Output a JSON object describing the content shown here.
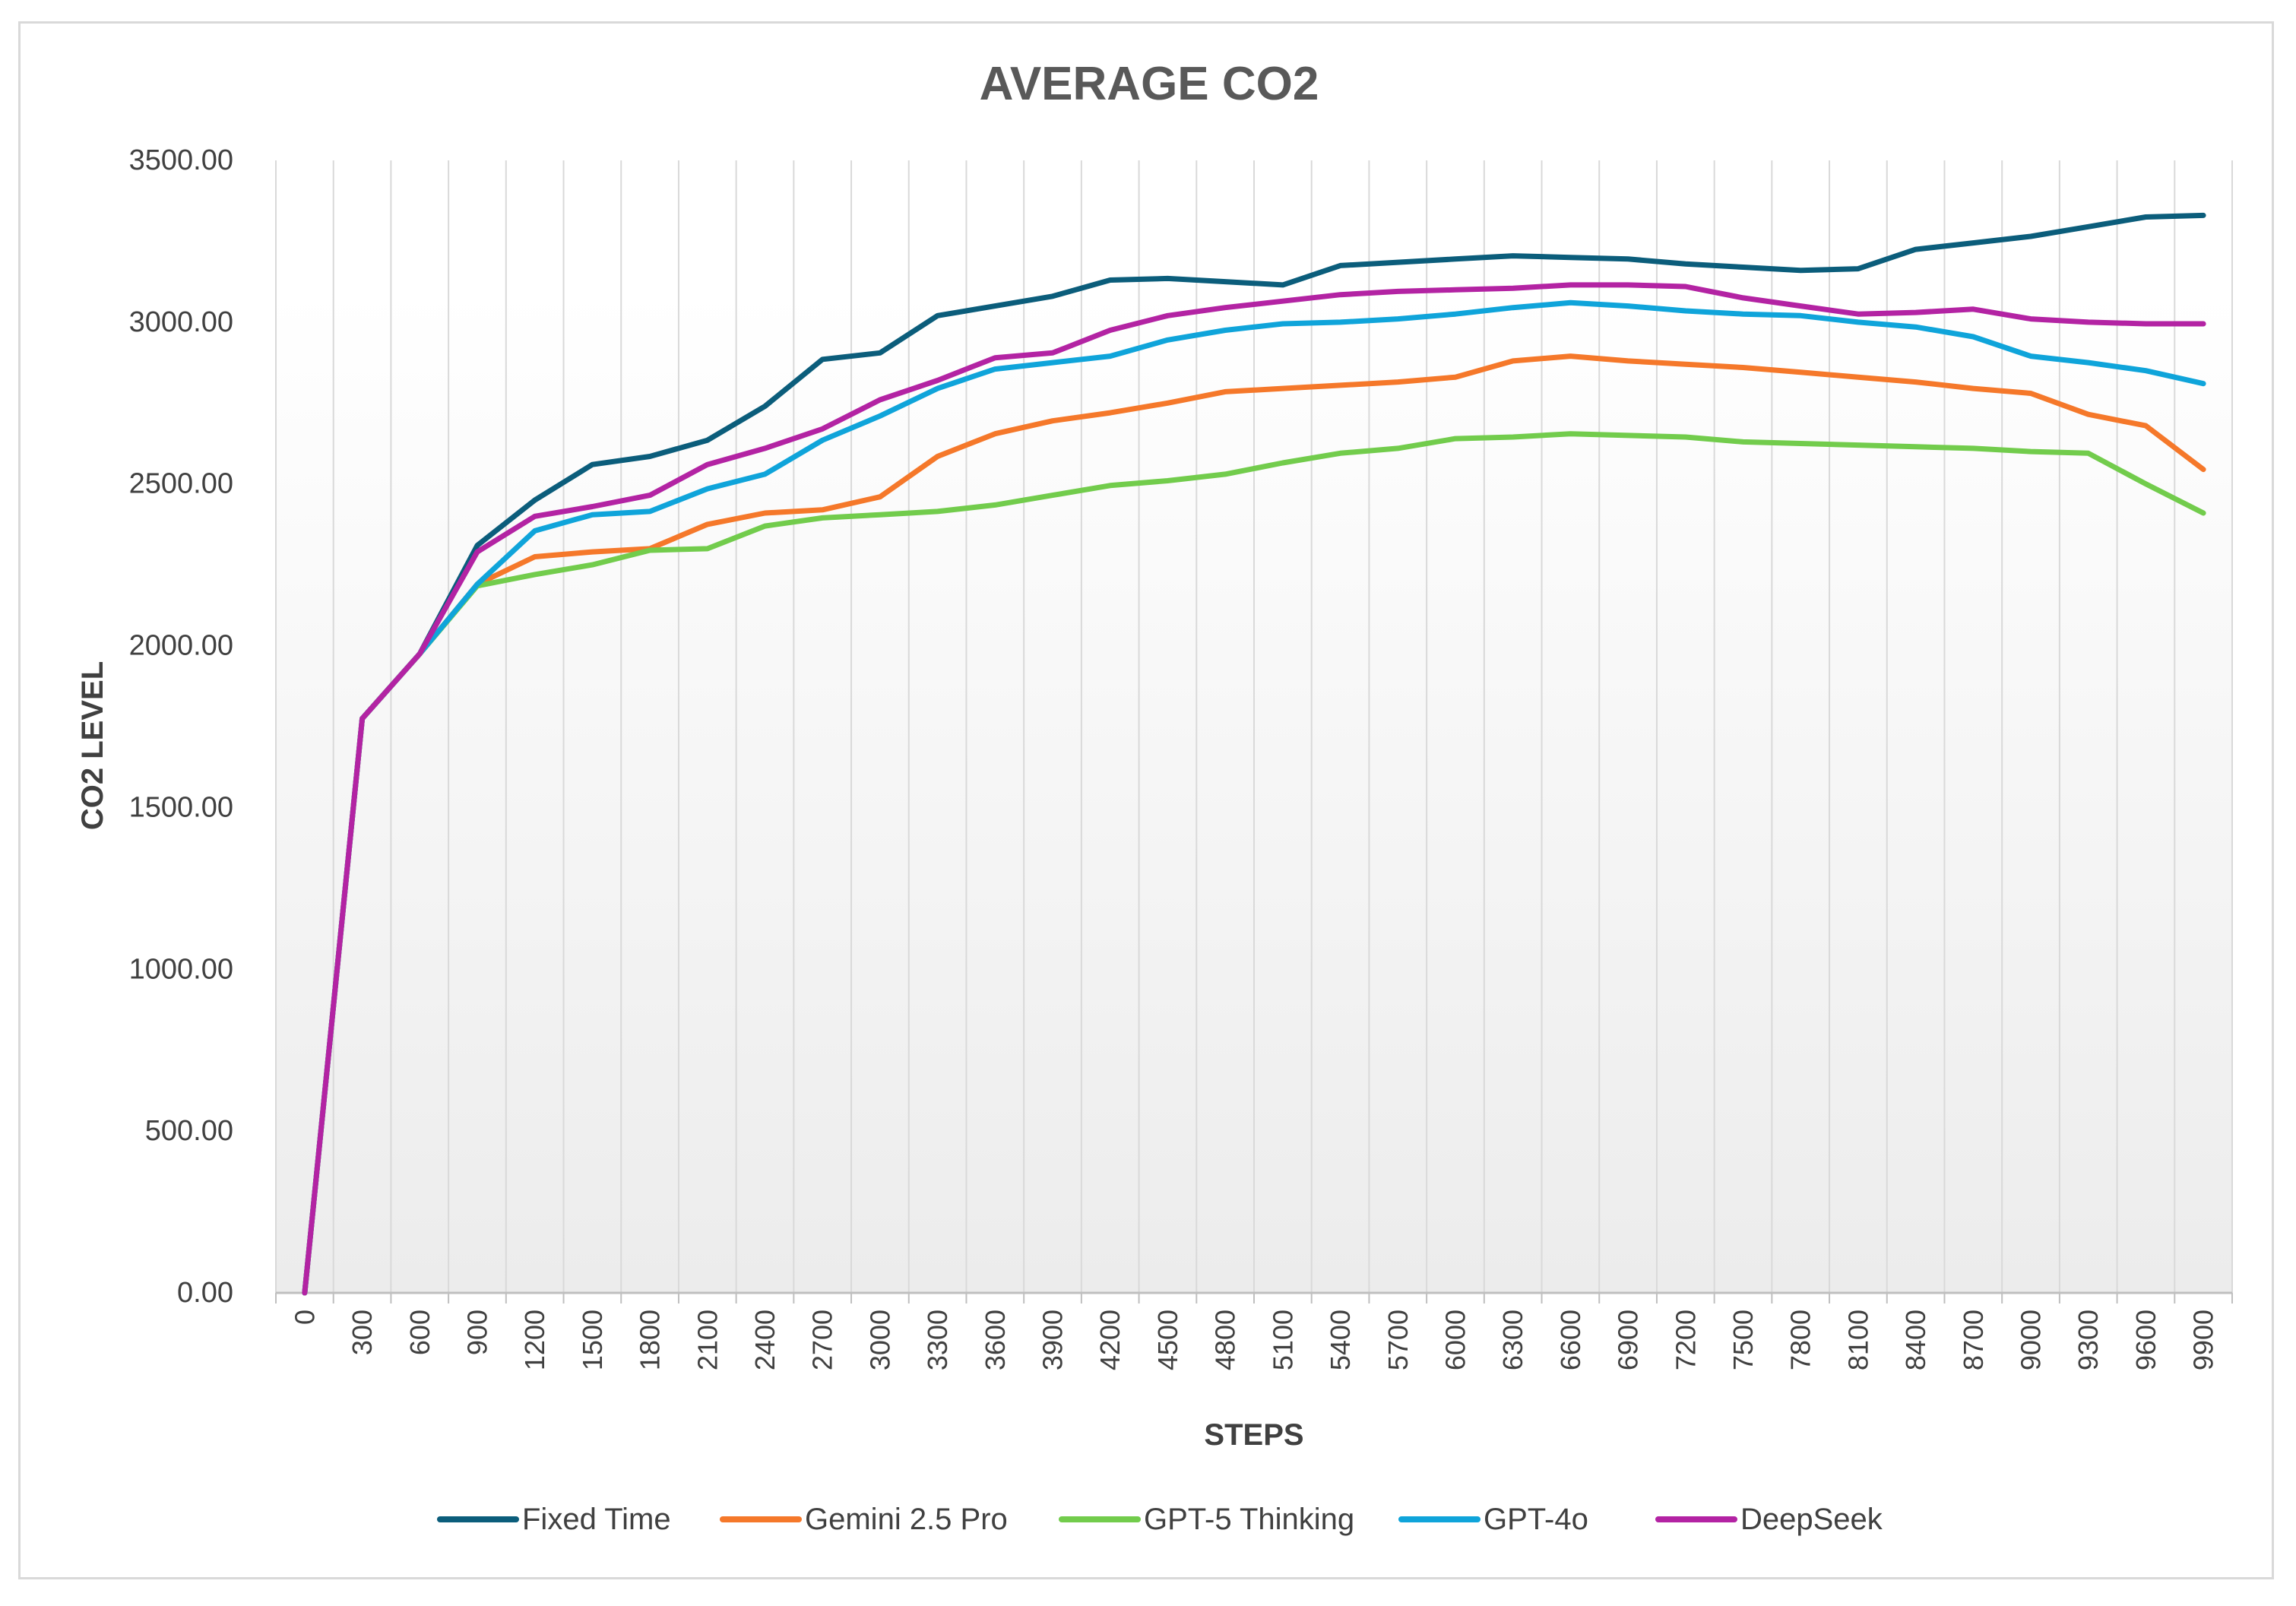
{
  "chart_data": {
    "type": "line",
    "title": "AVERAGE CO2",
    "xlabel": "STEPS",
    "ylabel": "CO2 LEVEL",
    "ylim": [
      0,
      3500
    ],
    "yticks": [
      "0.00",
      "500.00",
      "1000.00",
      "1500.00",
      "2000.00",
      "2500.00",
      "3000.00",
      "3500.00"
    ],
    "grid": "vertical",
    "legend_position": "bottom",
    "x": [
      "0",
      "300",
      "600",
      "900",
      "1200",
      "1500",
      "1800",
      "2100",
      "2400",
      "2700",
      "3000",
      "3300",
      "3600",
      "3900",
      "4200",
      "4500",
      "4800",
      "5100",
      "5400",
      "5700",
      "6000",
      "6300",
      "6600",
      "6900",
      "7200",
      "7500",
      "7800",
      "8100",
      "8400",
      "8700",
      "9000",
      "9300",
      "9600",
      "9900"
    ],
    "series": [
      {
        "name": "Fixed Time",
        "color": "#0b5d7b",
        "values": [
          0,
          1775,
          1975,
          2310,
          2450,
          2560,
          2585,
          2635,
          2740,
          2885,
          2905,
          3020,
          3050,
          3080,
          3130,
          3135,
          3125,
          3115,
          3175,
          3185,
          3195,
          3205,
          3200,
          3195,
          3180,
          3170,
          3160,
          3165,
          3225,
          3245,
          3265,
          3295,
          3325,
          3330
        ]
      },
      {
        "name": "Gemini 2.5 Pro",
        "color": "#f5782a",
        "values": [
          0,
          1775,
          1975,
          2190,
          2275,
          2290,
          2300,
          2375,
          2410,
          2420,
          2460,
          2585,
          2655,
          2695,
          2720,
          2750,
          2785,
          2795,
          2805,
          2815,
          2830,
          2880,
          2895,
          2880,
          2870,
          2860,
          2845,
          2830,
          2815,
          2795,
          2780,
          2715,
          2680,
          2545
        ]
      },
      {
        "name": "GPT-5 Thinking",
        "color": "#72cc4c",
        "values": [
          0,
          1775,
          1975,
          2185,
          2220,
          2250,
          2295,
          2300,
          2370,
          2395,
          2405,
          2415,
          2435,
          2465,
          2495,
          2510,
          2530,
          2565,
          2595,
          2610,
          2640,
          2645,
          2655,
          2650,
          2645,
          2630,
          2625,
          2620,
          2615,
          2610,
          2600,
          2595,
          2500,
          2410
        ]
      },
      {
        "name": "GPT-4o",
        "color": "#0fa4da",
        "values": [
          0,
          1775,
          1975,
          2190,
          2355,
          2405,
          2415,
          2485,
          2530,
          2635,
          2710,
          2795,
          2855,
          2875,
          2895,
          2945,
          2975,
          2995,
          3000,
          3010,
          3025,
          3045,
          3060,
          3050,
          3035,
          3025,
          3020,
          3000,
          2985,
          2955,
          2895,
          2875,
          2850,
          2810
        ]
      },
      {
        "name": "DeepSeek",
        "color": "#b323a3",
        "values": [
          0,
          1775,
          1975,
          2290,
          2400,
          2430,
          2465,
          2560,
          2610,
          2670,
          2760,
          2820,
          2890,
          2905,
          2975,
          3020,
          3045,
          3065,
          3085,
          3095,
          3100,
          3105,
          3115,
          3115,
          3110,
          3075,
          3050,
          3025,
          3030,
          3040,
          3010,
          3000,
          2995,
          2995
        ]
      }
    ]
  }
}
